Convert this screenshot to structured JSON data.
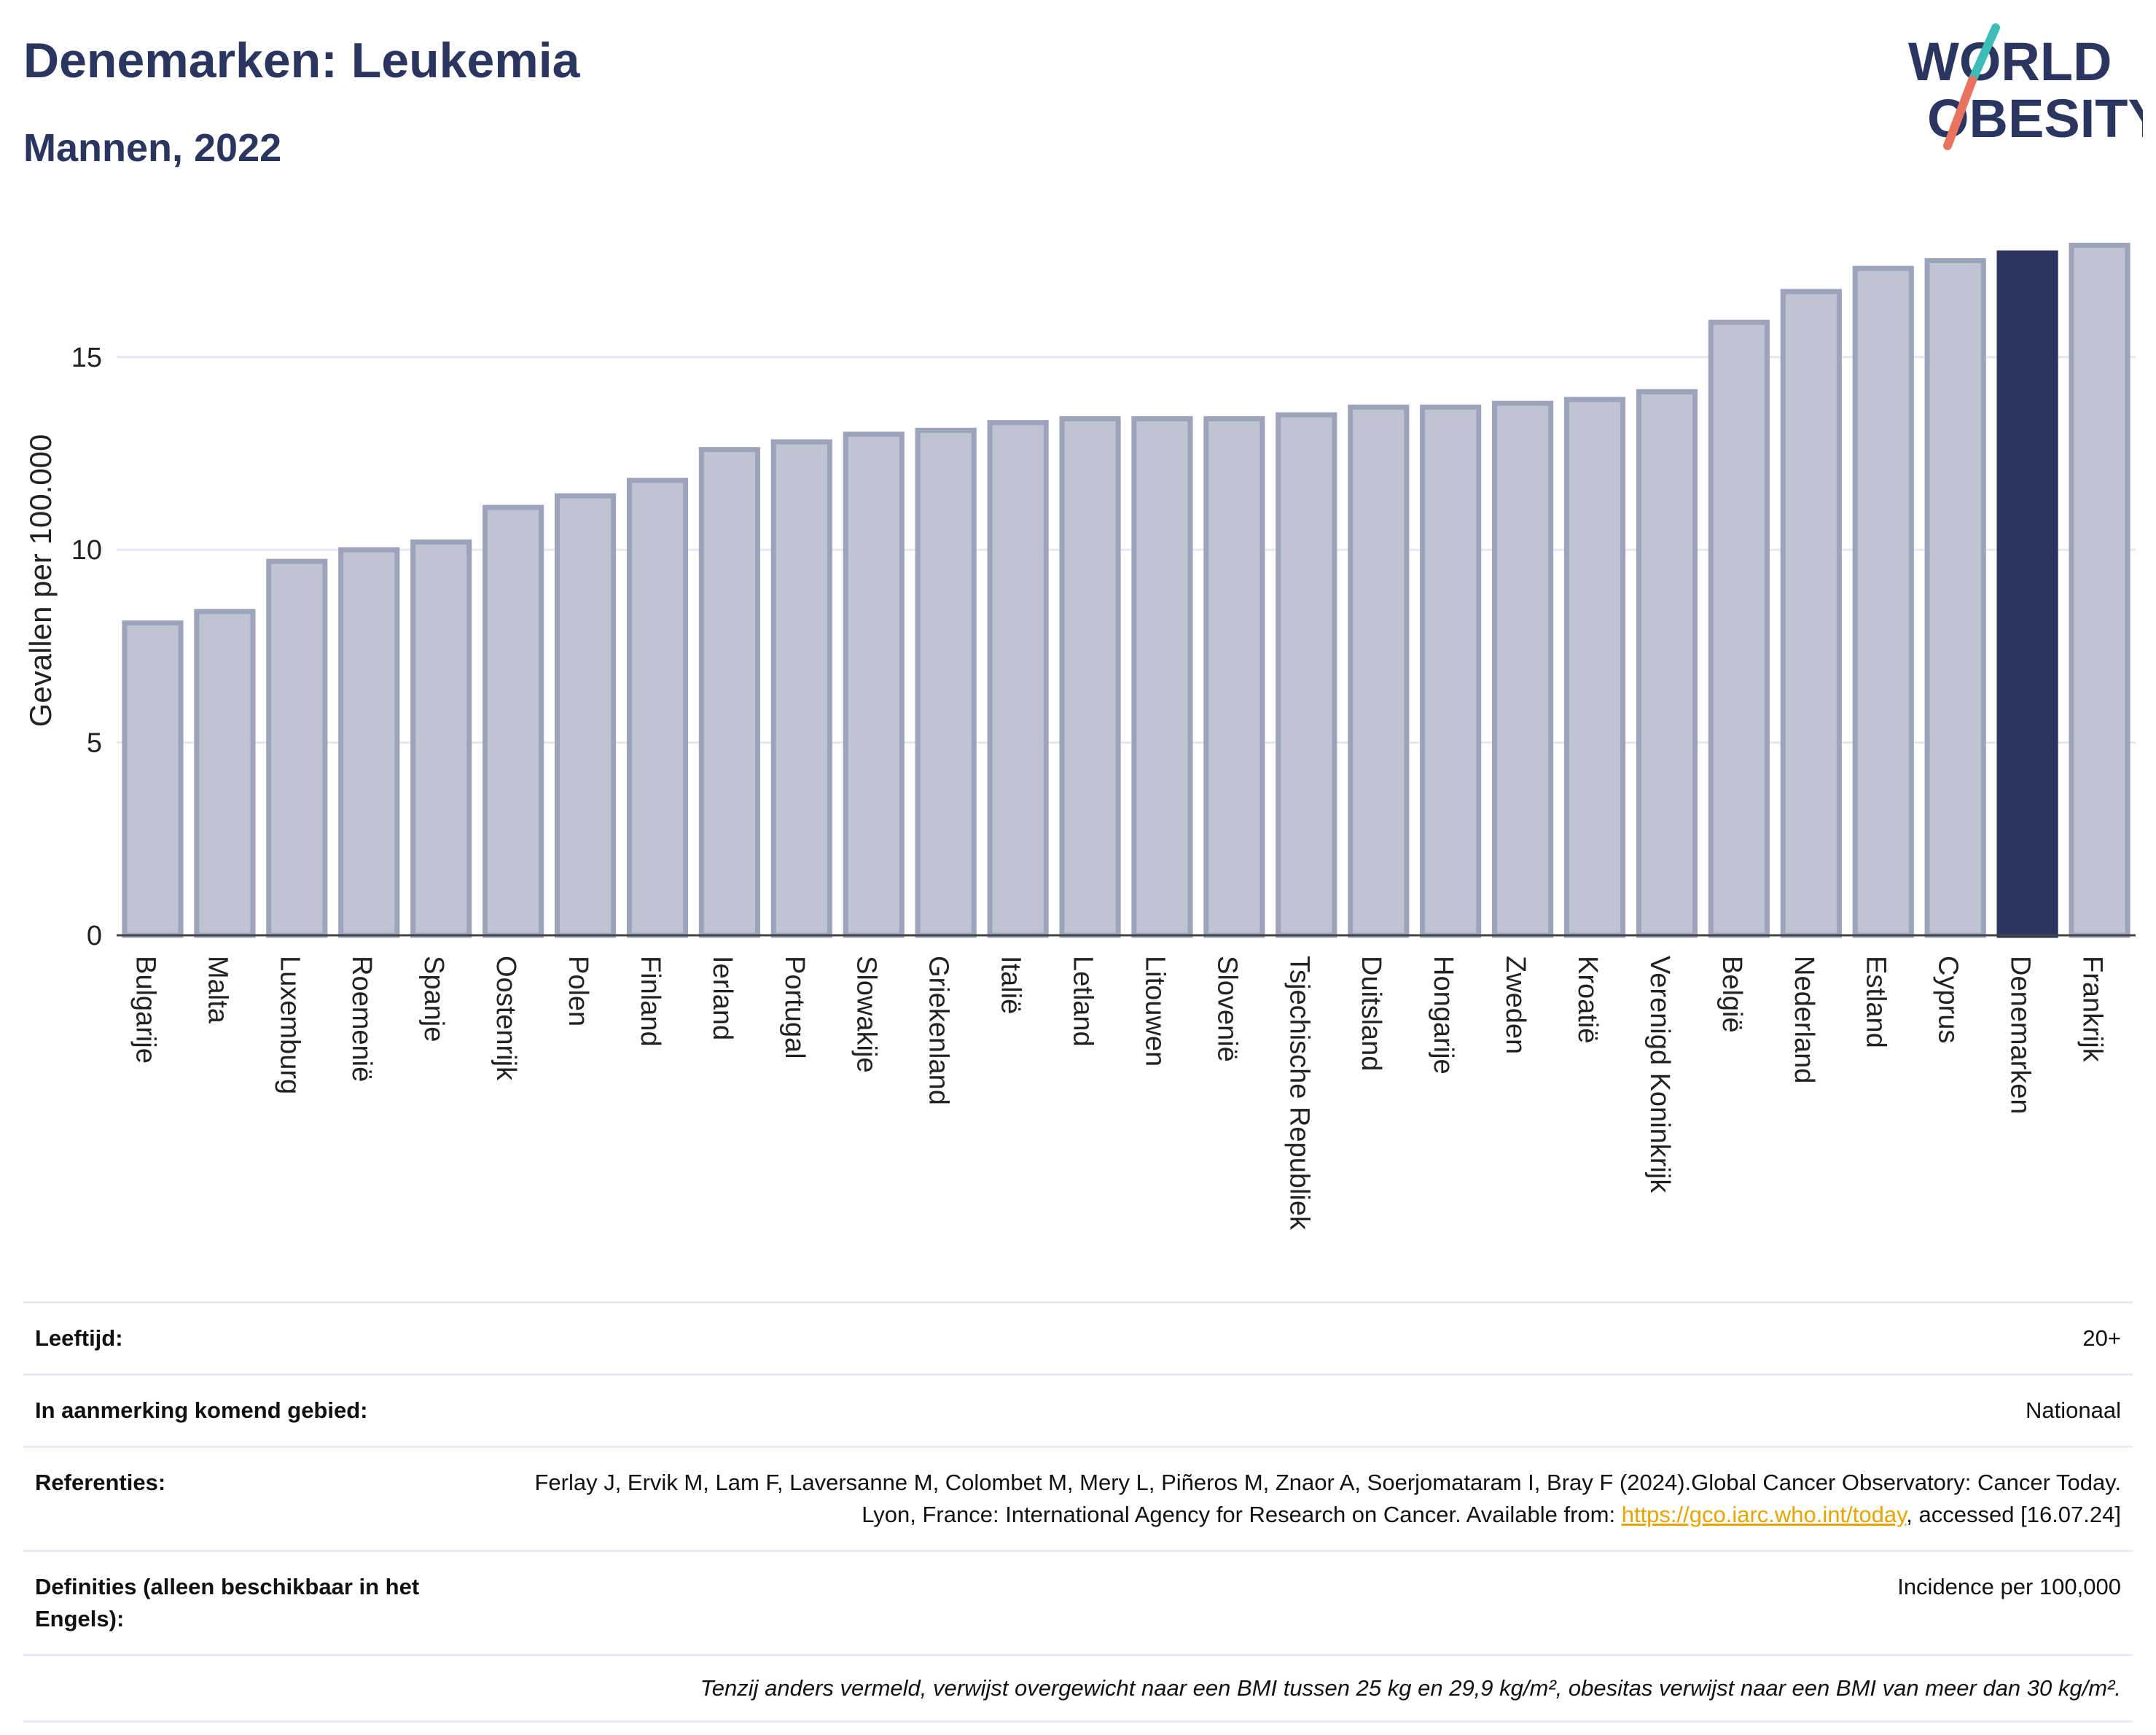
{
  "header": {
    "title": "Denemarken: Leukemia",
    "subtitle": "Mannen, 2022",
    "logo_line1": "WORLD",
    "logo_line2": "OBESITY"
  },
  "chart_data": {
    "type": "bar",
    "categories": [
      "Bulgarije",
      "Malta",
      "Luxemburg",
      "Roemenië",
      "Spanje",
      "Oostenrijk",
      "Polen",
      "Finland",
      "Ierland",
      "Portugal",
      "Slowakije",
      "Griekenland",
      "Italië",
      "Letland",
      "Litouwen",
      "Slovenië",
      "Tsjechische Republiek",
      "Duitsland",
      "Hongarije",
      "Zweden",
      "Kroatië",
      "Verenigd Koninkrijk",
      "België",
      "Nederland",
      "Estland",
      "Cyprus",
      "Denemarken",
      "Frankrijk"
    ],
    "values": [
      8.1,
      8.4,
      9.7,
      10.0,
      10.2,
      11.1,
      11.4,
      11.8,
      12.6,
      12.8,
      13.0,
      13.1,
      13.3,
      13.4,
      13.4,
      13.4,
      13.5,
      13.7,
      13.7,
      13.8,
      13.9,
      14.1,
      15.9,
      16.7,
      17.3,
      17.5,
      17.7,
      17.9
    ],
    "highlight": "Denemarken",
    "ylabel": "Gevallen per 100.000",
    "xlabel": "",
    "ylim": [
      0,
      18.4
    ],
    "yticks": [
      0,
      5,
      10,
      15
    ],
    "grid": true,
    "colors": {
      "bar": "#c0c3d1",
      "bar_border": "#9da3ba",
      "highlight": "#2a3560",
      "grid": "#e6e8ef"
    }
  },
  "info": {
    "rows": [
      {
        "label": "Leeftijd:",
        "value": "20+"
      },
      {
        "label": "In aanmerking komend gebied:",
        "value": "Nationaal"
      },
      {
        "label": "Referenties:",
        "value_pre": "Ferlay J, Ervik M, Lam F, Laversanne M, Colombet M, Mery L, Piñeros M, Znaor A, Soerjomataram I, Bray F (2024).Global Cancer Observatory: Cancer Today. Lyon, France: International Agency for Research on Cancer. Available from: ",
        "link": "https://gco.iarc.who.int/today",
        "value_post": ", accessed [16.07.24]"
      },
      {
        "label": "Definities (alleen beschikbaar in het Engels):",
        "value": "Incidence per 100,000"
      }
    ],
    "note": "Tenzij anders vermeld, verwijst overgewicht naar een BMI tussen 25 kg en 29,9 kg/m², obesitas verwijst naar een BMI van meer dan 30 kg/m²."
  }
}
